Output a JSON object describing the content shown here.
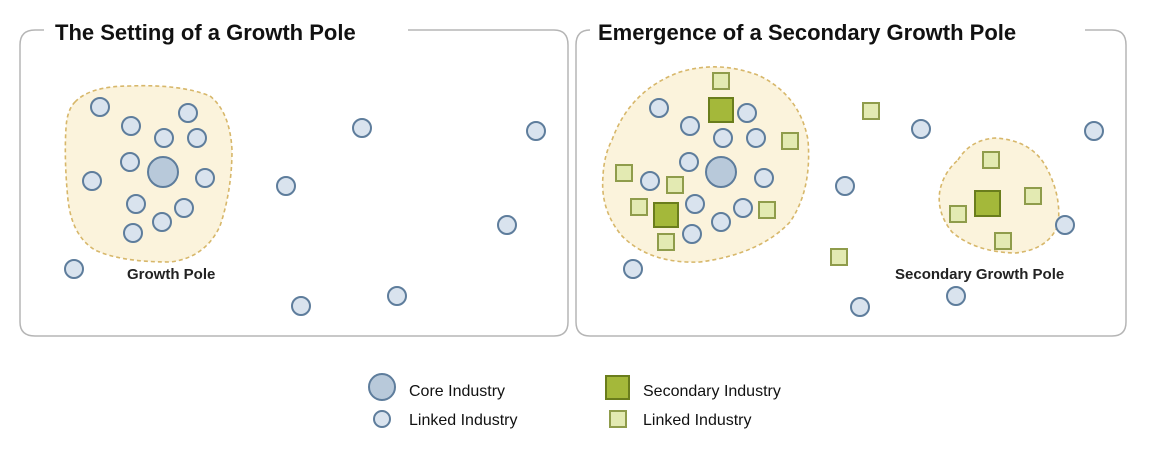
{
  "panels": [
    {
      "title": "The Setting of a Growth Pole",
      "region_labels": [
        "Growth Pole"
      ]
    },
    {
      "title": "Emergence of a Secondary Growth Pole",
      "region_labels": [
        "Secondary Growth Pole"
      ]
    }
  ],
  "legend": {
    "core_industry": "Core Industry",
    "linked_industry_circle": "Linked Industry",
    "secondary_industry": "Secondary Industry",
    "linked_industry_square": "Linked Industry"
  },
  "colors": {
    "panel_border": "#b5b5b5",
    "region_fill": "#fbf3dc",
    "region_stroke": "#d7b76a",
    "circle_fill": "#d9e3ee",
    "circle_stroke": "#5e7d9c",
    "core_fill": "#b8c9da",
    "square_dark_fill": "#a4b83a",
    "square_dark_stroke": "#6a7d1c",
    "square_light_fill": "#e3eab2",
    "square_light_stroke": "#8f9c4b"
  }
}
